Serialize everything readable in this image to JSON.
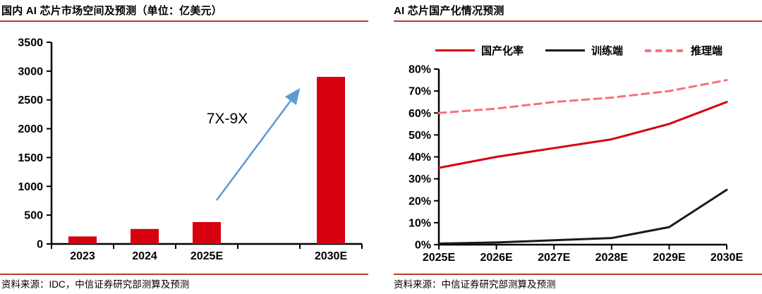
{
  "left_panel": {
    "title": "国内 AI 芯片市场空间及预测（单位：亿美元）",
    "source": "资料来源：IDC，中信证券研究部测算及预测",
    "annotation": "7X-9X"
  },
  "right_panel": {
    "title": "AI 芯片国产化情况预测",
    "source": "资料来源：中信证券研究部测算及预测",
    "legend": [
      {
        "label": "国产化率",
        "color": "#d7000f",
        "style": "solid"
      },
      {
        "label": "训练端",
        "color": "#1a1a1a",
        "style": "solid"
      },
      {
        "label": "推理端",
        "color": "#f8707e",
        "style": "dashed"
      }
    ]
  },
  "colors": {
    "bar_red": "#d7000f",
    "line_black": "#1a1a1a",
    "line_pink": "#f8707e",
    "arrow_blue": "#5b9bd5",
    "rule_red": "#c0392b"
  },
  "chart_data": [
    {
      "type": "bar",
      "title": "国内 AI 芯片市场空间及预测（单位：亿美元）",
      "categories": [
        "2023",
        "2024",
        "2025E",
        "2030E"
      ],
      "values": [
        130,
        260,
        380,
        2900
      ],
      "slots": [
        0,
        1,
        2,
        4
      ],
      "num_slots": 5,
      "ylim": [
        0,
        3500
      ],
      "ytick_step": 500,
      "grid": false,
      "annotation": "7X-9X",
      "bar_color": "#d7000f"
    },
    {
      "type": "line",
      "title": "AI 芯片国产化情况预测",
      "categories": [
        "2025E",
        "2026E",
        "2027E",
        "2028E",
        "2029E",
        "2030E"
      ],
      "series": [
        {
          "name": "国产化率",
          "values": [
            35,
            40,
            44,
            48,
            55,
            65
          ],
          "color": "#d7000f",
          "dash": "solid"
        },
        {
          "name": "训练端",
          "values": [
            0.5,
            1,
            2,
            3,
            8,
            25
          ],
          "color": "#1a1a1a",
          "dash": "solid"
        },
        {
          "name": "推理端",
          "values": [
            60,
            62,
            65,
            67,
            70,
            75
          ],
          "color": "#f8707e",
          "dash": "dashed"
        }
      ],
      "ylim": [
        0,
        80
      ],
      "ytick_step": 10,
      "ytick_format": "percent",
      "grid": false,
      "legend_position": "top"
    }
  ]
}
